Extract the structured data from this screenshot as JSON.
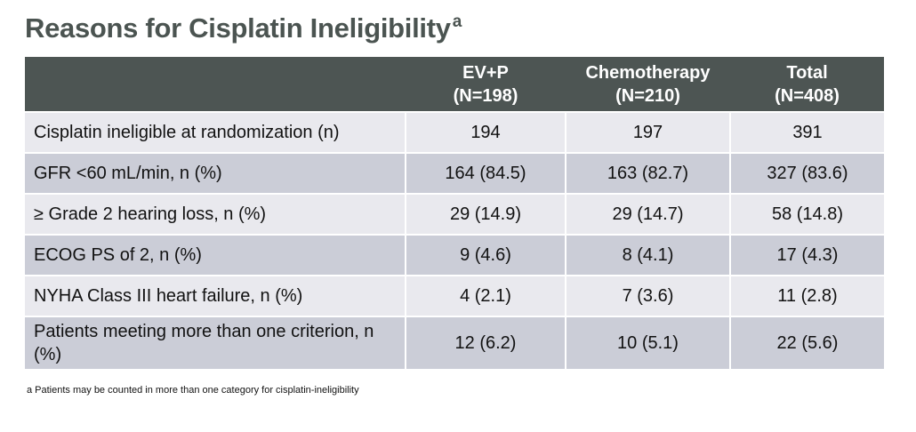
{
  "title": "Reasons for Cisplatin Ineligibility",
  "title_footnote_mark": "a",
  "table": {
    "columns": [
      {
        "name": "EV+P",
        "n": "(N=198)"
      },
      {
        "name": "Chemotherapy",
        "n": "(N=210)"
      },
      {
        "name": "Total",
        "n": "(N=408)"
      }
    ],
    "rows": [
      [
        "Cisplatin ineligible at randomization (n)",
        "194",
        "197",
        "391"
      ],
      [
        "GFR <60 mL/min, n (%)",
        "164 (84.5)",
        "163 (82.7)",
        "327 (83.6)"
      ],
      [
        "≥ Grade 2 hearing loss, n (%)",
        "29 (14.9)",
        "29 (14.7)",
        "58 (14.8)"
      ],
      [
        "ECOG PS of 2, n (%)",
        "9 (4.6)",
        "8 (4.1)",
        "17 (4.3)"
      ],
      [
        "NYHA Class III heart failure, n (%)",
        "4 (2.1)",
        "7 (3.6)",
        "11 (2.8)"
      ],
      [
        "Patients meeting more than one criterion, n (%)",
        "12 (6.2)",
        "10 (5.1)",
        "22 (5.6)"
      ]
    ]
  },
  "footnote": "a  Patients may be counted in more than one category for cisplatin-ineligibility"
}
